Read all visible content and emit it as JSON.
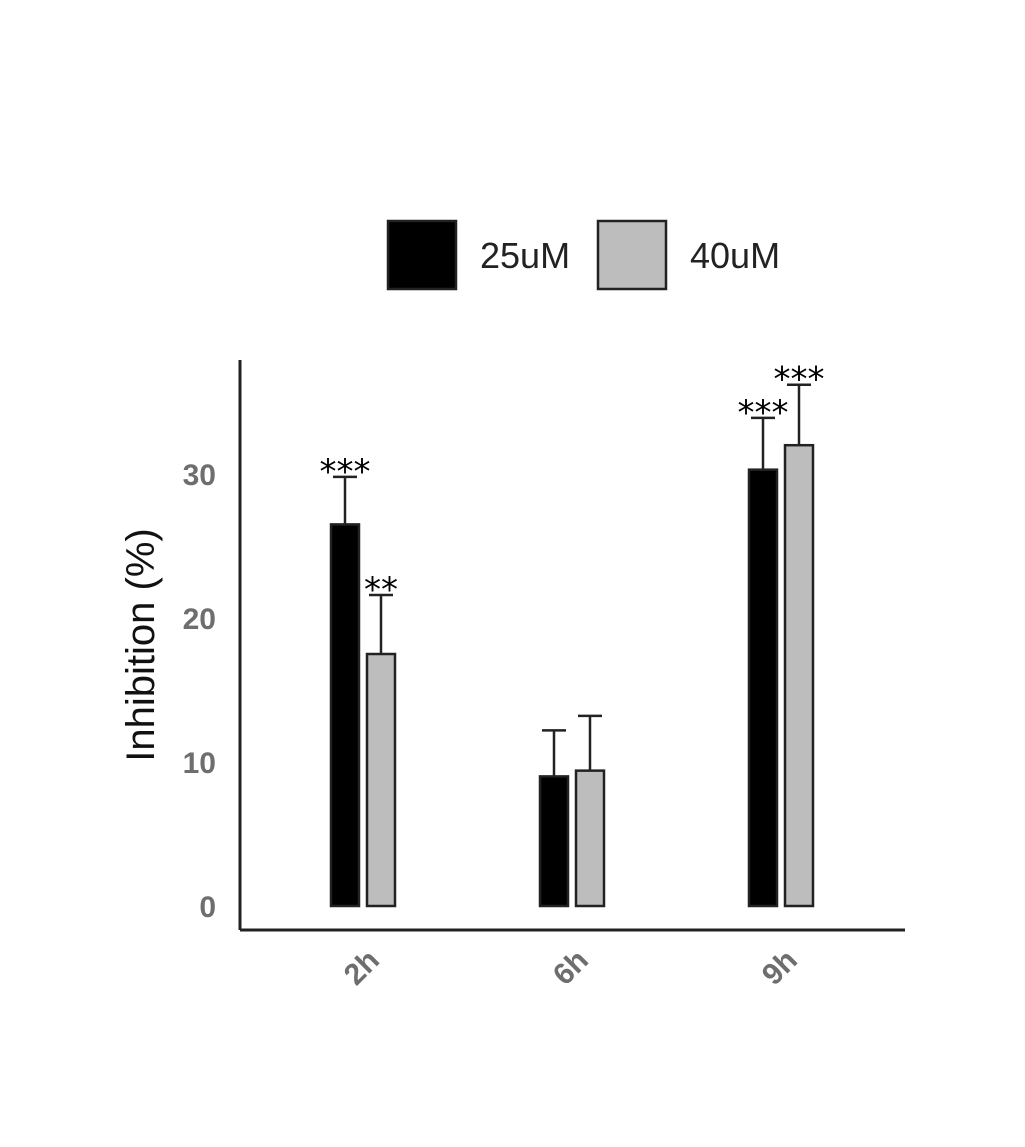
{
  "chart_data": {
    "type": "bar",
    "title": "",
    "xlabel": "",
    "ylabel": "Inhibition (%)",
    "ylim": [
      0,
      38
    ],
    "yticks": [
      "0",
      "10",
      "20",
      "30"
    ],
    "categories": [
      "2h",
      "6h",
      "9h"
    ],
    "grid": false,
    "legend_position": "top",
    "series": [
      {
        "name": "25uM",
        "color": "#000000",
        "values": [
          26.5,
          9,
          30.3
        ],
        "errors": [
          3.3,
          3.2,
          3.6
        ],
        "significance": [
          "***",
          "",
          "***"
        ]
      },
      {
        "name": "40uM",
        "color": "#bdbdbd",
        "values": [
          17.5,
          9.4,
          32
        ],
        "errors": [
          4.1,
          3.8,
          4.2
        ],
        "significance": [
          "**",
          "",
          "***"
        ]
      }
    ]
  }
}
